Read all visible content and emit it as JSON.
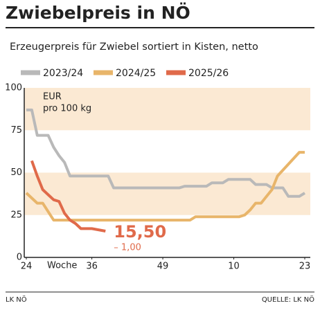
{
  "chart_data": {
    "type": "line",
    "title": "Zwiebelpreis in NÖ",
    "subtitle": "Erzeugerpreis für Zwiebel sortiert in Kisten, netto",
    "y_label_lines": [
      "EUR",
      "pro 100 kg"
    ],
    "x_label": "Woche",
    "xlim": [
      0,
      51
    ],
    "xticks": [
      {
        "value": 0,
        "label": "24"
      },
      {
        "value": 12,
        "label": "36"
      },
      {
        "value": 25,
        "label": "49"
      },
      {
        "value": 38,
        "label": "10"
      },
      {
        "value": 51,
        "label": "23"
      }
    ],
    "ylim": [
      0,
      100
    ],
    "yticks": [
      0,
      25,
      50,
      75,
      100
    ],
    "shaded_bands": [
      [
        25,
        50
      ],
      [
        75,
        100
      ]
    ],
    "band_color": "#fbe9d3",
    "series": [
      {
        "name": "2023/24",
        "color": "#b9b9b9",
        "x": [
          0,
          1,
          2,
          4,
          5,
          6,
          7,
          8,
          15,
          16,
          28,
          29,
          33,
          34,
          36,
          37,
          41,
          42,
          44,
          45,
          47,
          48,
          50,
          51
        ],
        "values": [
          87,
          87,
          72,
          72,
          65,
          60,
          56,
          48,
          48,
          41,
          41,
          42,
          42,
          44,
          44,
          46,
          46,
          43,
          43,
          41,
          41,
          36,
          36,
          38
        ]
      },
      {
        "name": "2024/25",
        "color": "#e8b56a",
        "x": [
          0,
          1,
          2,
          3,
          4,
          5,
          30,
          31,
          39,
          40,
          41,
          42,
          43,
          44,
          45,
          46,
          48,
          50,
          51
        ],
        "values": [
          38,
          35,
          32,
          32,
          27,
          22,
          22,
          24,
          24,
          25,
          28,
          32,
          32,
          36,
          40,
          48,
          55,
          62,
          62
        ]
      },
      {
        "name": "2025/26",
        "color": "#e06a4a",
        "x": [
          1,
          2,
          3,
          4,
          5,
          6,
          7,
          8,
          9,
          10,
          12,
          14.5
        ],
        "values": [
          57,
          48,
          40,
          37,
          34,
          33,
          26,
          22,
          20,
          17,
          17,
          15.5
        ],
        "value_labels": [
          null,
          null,
          null,
          null,
          null,
          null,
          null,
          null,
          null,
          null,
          null,
          "15,50"
        ],
        "annotation": "– 1,00"
      }
    ],
    "footer_left": "LK NÖ",
    "footer_right": "QUELLE: LK NÖ"
  }
}
